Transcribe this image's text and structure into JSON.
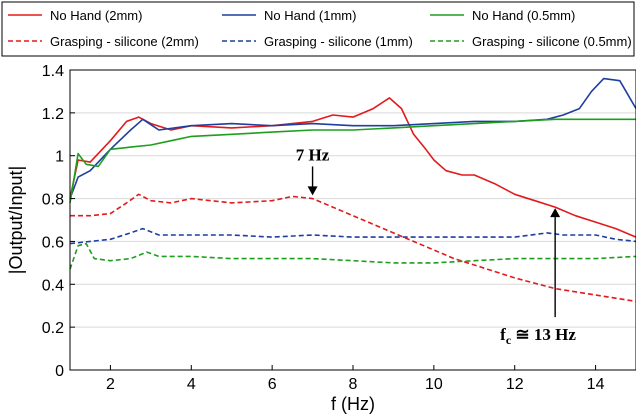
{
  "chart_data": {
    "type": "line",
    "title": "",
    "xlabel": "f (Hz)",
    "ylabel": "|Output/Input|",
    "xlim": [
      1,
      15
    ],
    "ylim": [
      0,
      1.4
    ],
    "x_ticks": [
      2,
      4,
      6,
      8,
      10,
      12,
      14
    ],
    "y_ticks": [
      0,
      0.2,
      0.4,
      0.6,
      0.8,
      1,
      1.2,
      1.4
    ],
    "x_tick_labels": [
      "2",
      "4",
      "6",
      "8",
      "10",
      "12",
      "14"
    ],
    "y_tick_labels": [
      "0",
      "0.2",
      "0.4",
      "0.6",
      "0.8",
      "1",
      "1.2",
      "1.4"
    ],
    "grid": "y",
    "legend_placement": "top, outside plot, 3 columns",
    "series": [
      {
        "name": "No Hand (2mm)",
        "color": "#e31a1c",
        "style": "solid",
        "x": [
          1.0,
          1.2,
          1.5,
          2.0,
          2.4,
          2.7,
          3.0,
          3.5,
          4.0,
          5.0,
          6.0,
          7.0,
          7.5,
          8.0,
          8.5,
          8.9,
          9.2,
          9.5,
          9.8,
          10.0,
          10.3,
          10.7,
          11.0,
          11.5,
          12.0,
          12.5,
          13.0,
          13.5,
          14.0,
          14.5,
          15.0
        ],
        "y": [
          0.8,
          0.98,
          0.97,
          1.07,
          1.16,
          1.18,
          1.15,
          1.12,
          1.14,
          1.13,
          1.14,
          1.16,
          1.19,
          1.18,
          1.22,
          1.27,
          1.22,
          1.1,
          1.03,
          0.98,
          0.93,
          0.91,
          0.91,
          0.87,
          0.82,
          0.79,
          0.76,
          0.72,
          0.69,
          0.66,
          0.62
        ]
      },
      {
        "name": "No Hand (1mm)",
        "color": "#1f3fa0",
        "style": "solid",
        "x": [
          1.0,
          1.2,
          1.5,
          2.0,
          2.5,
          2.8,
          3.2,
          4.0,
          5.0,
          6.0,
          7.0,
          8.0,
          9.0,
          10.0,
          11.0,
          12.0,
          12.8,
          13.2,
          13.6,
          13.9,
          14.2,
          14.6,
          15.0
        ],
        "y": [
          0.8,
          0.9,
          0.93,
          1.03,
          1.12,
          1.17,
          1.12,
          1.14,
          1.15,
          1.14,
          1.15,
          1.14,
          1.14,
          1.15,
          1.16,
          1.16,
          1.17,
          1.19,
          1.22,
          1.3,
          1.36,
          1.35,
          1.22
        ]
      },
      {
        "name": "No Hand (0.5mm)",
        "color": "#1e9e1e",
        "style": "solid",
        "x": [
          1.0,
          1.2,
          1.4,
          1.7,
          2.0,
          2.5,
          3.0,
          3.5,
          4.0,
          5.0,
          6.0,
          7.0,
          8.0,
          9.0,
          10.0,
          11.0,
          12.0,
          13.0,
          14.0,
          15.0
        ],
        "y": [
          0.78,
          1.01,
          0.96,
          0.95,
          1.03,
          1.04,
          1.05,
          1.07,
          1.09,
          1.1,
          1.11,
          1.12,
          1.12,
          1.13,
          1.14,
          1.15,
          1.16,
          1.17,
          1.17,
          1.17
        ]
      },
      {
        "name": "Grasping - silicone (2mm)",
        "color": "#e31a1c",
        "style": "dashed",
        "x": [
          1.0,
          1.5,
          2.0,
          2.4,
          2.7,
          3.0,
          3.5,
          4.0,
          5.0,
          6.0,
          6.5,
          7.0,
          7.5,
          8.0,
          9.0,
          10.0,
          10.5,
          11.0,
          12.0,
          13.0,
          14.0,
          15.0
        ],
        "y": [
          0.72,
          0.72,
          0.73,
          0.78,
          0.82,
          0.79,
          0.78,
          0.8,
          0.78,
          0.79,
          0.81,
          0.8,
          0.76,
          0.72,
          0.64,
          0.56,
          0.52,
          0.49,
          0.43,
          0.38,
          0.35,
          0.32
        ]
      },
      {
        "name": "Grasping - silicone (1mm)",
        "color": "#1f3fa0",
        "style": "dashed",
        "x": [
          1.0,
          1.5,
          2.0,
          2.5,
          2.8,
          3.2,
          4.0,
          5.0,
          6.0,
          7.0,
          8.0,
          9.0,
          10.0,
          11.0,
          12.0,
          12.8,
          13.2,
          14.0,
          14.5,
          15.0
        ],
        "y": [
          0.59,
          0.6,
          0.61,
          0.64,
          0.66,
          0.63,
          0.63,
          0.63,
          0.62,
          0.63,
          0.62,
          0.62,
          0.62,
          0.62,
          0.62,
          0.64,
          0.63,
          0.63,
          0.61,
          0.6
        ]
      },
      {
        "name": "Grasping - silicone (0.5mm)",
        "color": "#1e9e1e",
        "style": "dashed",
        "x": [
          1.0,
          1.2,
          1.4,
          1.6,
          2.0,
          2.5,
          2.9,
          3.2,
          4.0,
          5.0,
          6.0,
          7.0,
          8.0,
          9.0,
          10.0,
          11.0,
          12.0,
          13.0,
          14.0,
          15.0
        ],
        "y": [
          0.47,
          0.58,
          0.59,
          0.52,
          0.51,
          0.52,
          0.55,
          0.53,
          0.53,
          0.52,
          0.52,
          0.52,
          0.51,
          0.5,
          0.5,
          0.51,
          0.52,
          0.52,
          0.52,
          0.53
        ]
      }
    ],
    "annotations": [
      {
        "text": "7 Hz",
        "x": 7.0,
        "y": 0.81,
        "arrow": "down"
      },
      {
        "text_main": "f",
        "text_sub": "c",
        "text_rest": " ≅ 13 Hz",
        "x": 13.0,
        "y": 0.76,
        "arrow": "up"
      }
    ]
  }
}
